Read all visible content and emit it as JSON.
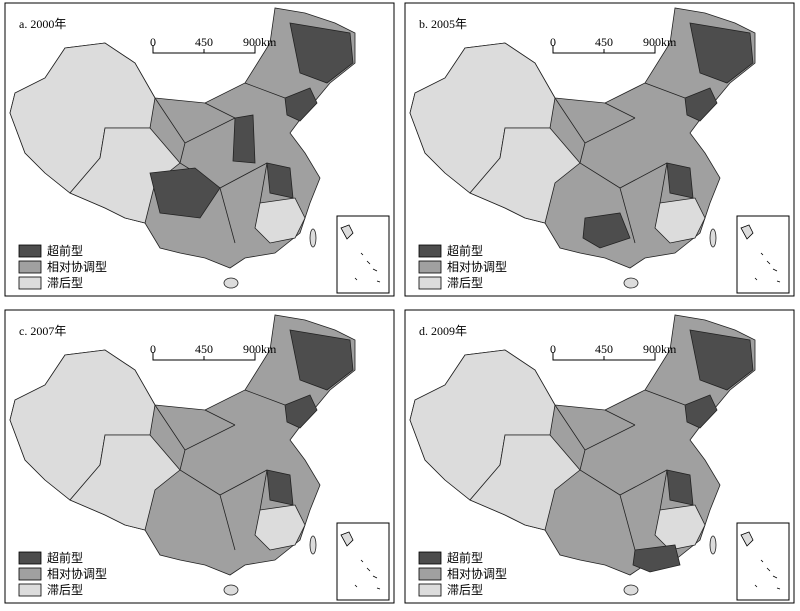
{
  "panels": [
    {
      "title": "a. 2000年"
    },
    {
      "title": "b. 2005年"
    },
    {
      "title": "c. 2007年"
    },
    {
      "title": "d. 2009年"
    }
  ],
  "scale_bar": [
    "0",
    "450",
    "900km"
  ],
  "legend": [
    {
      "label": "超前型",
      "color": "#4d4d4d"
    },
    {
      "label": "相对协调型",
      "color": "#a0a0a0"
    },
    {
      "label": "滞后型",
      "color": "#dcdcdc"
    }
  ]
}
